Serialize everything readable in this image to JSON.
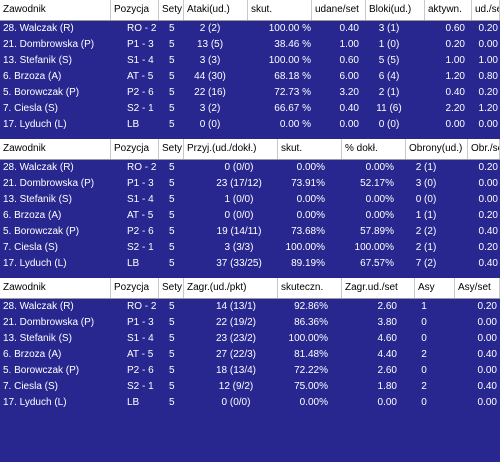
{
  "tables": [
    {
      "headers": [
        "Zawodnik",
        "Pozycja",
        "Sety",
        "Ataki(ud.)",
        "skut.",
        "udane/set",
        "Bloki(ud.)",
        "aktywn.",
        "ud./set"
      ],
      "rows": [
        [
          "28. Walczak (R)",
          "RO - 2",
          "5",
          "2 (2)",
          "100.00 %",
          "0.40",
          "3 (1)",
          "0.60",
          "0.20"
        ],
        [
          "21. Dombrowska (P)",
          "P1 - 3",
          "5",
          "13 (5)",
          "38.46 %",
          "1.00",
          "1 (0)",
          "0.20",
          "0.00"
        ],
        [
          "13. Stefanik (S)",
          "S1 - 4",
          "5",
          "3 (3)",
          "100.00 %",
          "0.60",
          "5 (5)",
          "1.00",
          "1.00"
        ],
        [
          "6. Brzoza (A)",
          "AT - 5",
          "5",
          "44 (30)",
          "68.18 %",
          "6.00",
          "6 (4)",
          "1.20",
          "0.80"
        ],
        [
          "5. Borowczak (P)",
          "P2 - 6",
          "5",
          "22 (16)",
          "72.73 %",
          "3.20",
          "2 (1)",
          "0.40",
          "0.20"
        ],
        [
          "7. Ciesla (S)",
          "S2 - 1",
          "5",
          "3 (2)",
          "66.67 %",
          "0.40",
          "11 (6)",
          "2.20",
          "1.20"
        ],
        [
          "17. Lyduch (L)",
          "LB",
          "5",
          "0 (0)",
          "0.00 %",
          "0.00",
          "0 (0)",
          "0.00",
          "0.00"
        ]
      ]
    },
    {
      "headers": [
        "Zawodnik",
        "Pozycja",
        "Sety",
        "Przyj.(ud./dokł.)",
        "skut.",
        "% dokł.",
        "Obrony(ud.)",
        "Obr./set"
      ],
      "rows": [
        [
          "28. Walczak (R)",
          "RO - 2",
          "5",
          "0 (0/0)",
          "0.00%",
          "0.00%",
          "2 (1)",
          "0.20"
        ],
        [
          "21. Dombrowska (P)",
          "P1 - 3",
          "5",
          "23 (17/12)",
          "73.91%",
          "52.17%",
          "3 (0)",
          "0.00"
        ],
        [
          "13. Stefanik (S)",
          "S1 - 4",
          "5",
          "1 (0/0)",
          "0.00%",
          "0.00%",
          "0 (0)",
          "0.00"
        ],
        [
          "6. Brzoza (A)",
          "AT - 5",
          "5",
          "0 (0/0)",
          "0.00%",
          "0.00%",
          "1 (1)",
          "0.20"
        ],
        [
          "5. Borowczak (P)",
          "P2 - 6",
          "5",
          "19 (14/11)",
          "73.68%",
          "57.89%",
          "2 (2)",
          "0.40"
        ],
        [
          "7. Ciesla (S)",
          "S2 - 1",
          "5",
          "3 (3/3)",
          "100.00%",
          "100.00%",
          "2 (1)",
          "0.20"
        ],
        [
          "17. Lyduch (L)",
          "LB",
          "5",
          "37 (33/25)",
          "89.19%",
          "67.57%",
          "7 (2)",
          "0.40"
        ]
      ]
    },
    {
      "headers": [
        "Zawodnik",
        "Pozycja",
        "Sety",
        "Zagr.(ud./pkt)",
        "skuteczn.",
        "Zagr.ud./set",
        "Asy",
        "Asy/set"
      ],
      "rows": [
        [
          "28. Walczak (R)",
          "RO - 2",
          "5",
          "14 (13/1)",
          "92.86%",
          "2.60",
          "1",
          "0.20"
        ],
        [
          "21. Dombrowska (P)",
          "P1 - 3",
          "5",
          "22 (19/2)",
          "86.36%",
          "3.80",
          "0",
          "0.00"
        ],
        [
          "13. Stefanik (S)",
          "S1 - 4",
          "5",
          "23 (23/2)",
          "100.00%",
          "4.60",
          "0",
          "0.00"
        ],
        [
          "6. Brzoza (A)",
          "AT - 5",
          "5",
          "27 (22/3)",
          "81.48%",
          "4.40",
          "2",
          "0.40"
        ],
        [
          "5. Borowczak (P)",
          "P2 - 6",
          "5",
          "18 (13/4)",
          "72.22%",
          "2.60",
          "0",
          "0.00"
        ],
        [
          "7. Ciesla (S)",
          "S2 - 1",
          "5",
          "12 (9/2)",
          "75.00%",
          "1.80",
          "2",
          "0.40"
        ],
        [
          "17. Lyduch (L)",
          "LB",
          "5",
          "0 (0/0)",
          "0.00%",
          "0.00",
          "0",
          "0.00"
        ]
      ]
    }
  ]
}
